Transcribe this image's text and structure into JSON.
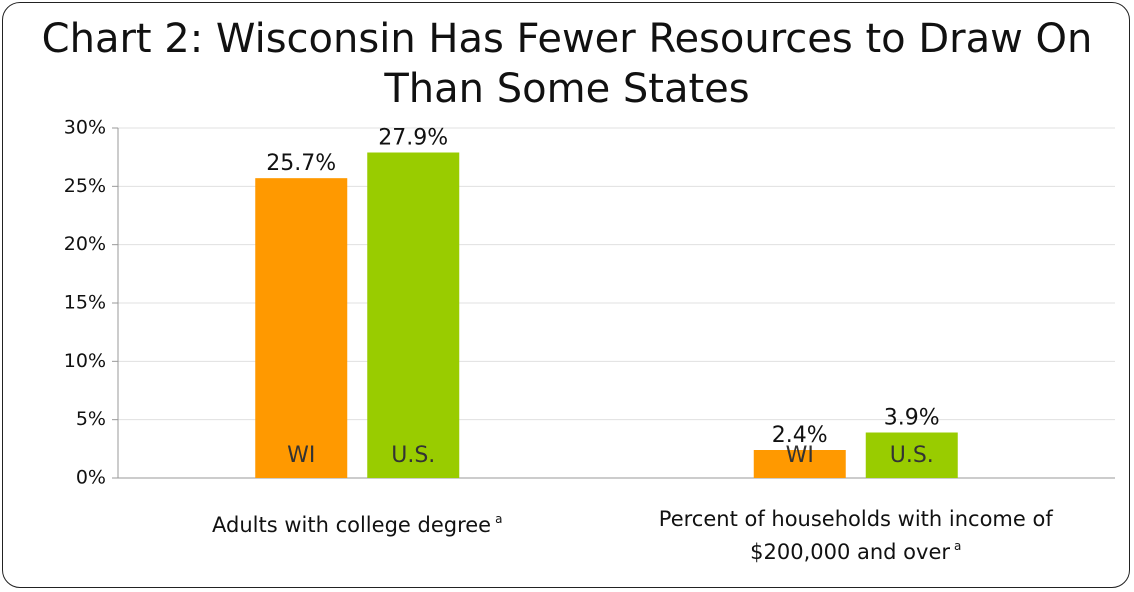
{
  "chart_data": {
    "type": "bar",
    "title": "Chart 2: Wisconsin Has Fewer Resources to Draw On Than Some States",
    "categories": [
      "Adults with college degree",
      "Percent of households with income of $200,000 and over"
    ],
    "category_footnotes": [
      "a",
      "a"
    ],
    "series": [
      {
        "name": "WI",
        "color": "#ff9900",
        "values": [
          25.7,
          2.4
        ],
        "value_labels": [
          "25.7%",
          "2.4%"
        ]
      },
      {
        "name": "U.S.",
        "color": "#99cc00",
        "values": [
          27.9,
          3.9
        ],
        "value_labels": [
          "27.9%",
          "3.9%"
        ]
      }
    ],
    "ylim": [
      0,
      30
    ],
    "yticks": [
      {
        "value": 0,
        "label": "0%"
      },
      {
        "value": 5,
        "label": "5%"
      },
      {
        "value": 10,
        "label": "10%"
      },
      {
        "value": 15,
        "label": "15%"
      },
      {
        "value": 20,
        "label": "20%"
      },
      {
        "value": 25,
        "label": "25%"
      },
      {
        "value": 30,
        "label": "30%"
      }
    ],
    "grid": true
  }
}
